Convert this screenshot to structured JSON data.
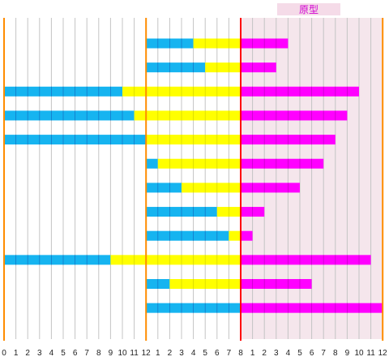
{
  "chart_data": {
    "type": "bar",
    "subtype": "stacked-horizontal-segmented",
    "axis": {
      "sections": [
        {
          "start": 0,
          "ticks": [
            "0",
            "1",
            "2",
            "3",
            "4",
            "5",
            "6",
            "7",
            "8",
            "9",
            "10",
            "11"
          ]
        },
        {
          "start": 12,
          "ticks": [
            "12",
            "1",
            "2",
            "3",
            "4",
            "5",
            "6",
            "7"
          ]
        },
        {
          "start": 20,
          "ticks": [
            "8",
            "1",
            "2",
            "3",
            "4",
            "5",
            "6",
            "7",
            "8",
            "9",
            "10",
            "11",
            "12"
          ]
        }
      ],
      "xlim": [
        0,
        32
      ],
      "grid": true
    },
    "dividers": [
      {
        "at": 0,
        "color": "#ff8c00"
      },
      {
        "at": 12,
        "color": "#ff8c00"
      },
      {
        "at": 20,
        "color": "#ff0000"
      },
      {
        "at": 32,
        "color": "#ff8c00"
      }
    ],
    "region": {
      "label": "原型",
      "from": 20,
      "to": 32,
      "fill": "#f5e6ec",
      "label_fill": "#f5dbe8",
      "label_color": "#d100d1"
    },
    "series": [
      {
        "color": "#16b4f0",
        "edge": "#1277c9",
        "values": [
          4,
          5,
          10,
          11,
          12,
          1,
          3,
          6,
          7,
          9,
          2,
          8
        ]
      },
      {
        "color": "#ffff00",
        "edge": "#d8d800",
        "values": [
          4,
          3,
          10,
          9,
          8,
          7,
          5,
          2,
          1,
          11,
          6,
          12
        ]
      },
      {
        "color": "#ff00ff",
        "edge": "#c800c8",
        "values": [
          4,
          3,
          10,
          9,
          8,
          7,
          5,
          2,
          1,
          11,
          6,
          12
        ]
      }
    ]
  }
}
